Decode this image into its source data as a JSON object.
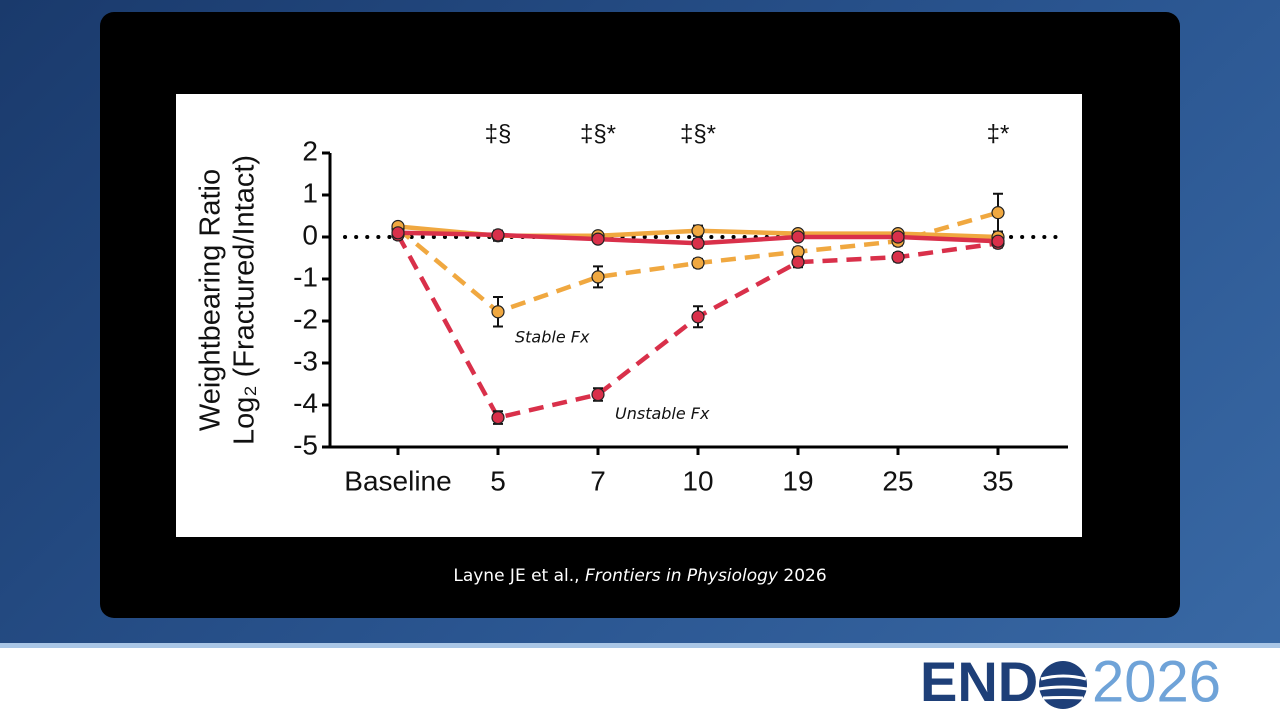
{
  "chart_data": {
    "type": "line",
    "y_label": [
      "Weightbearing Ratio",
      "Log₂ (Fractured/Intact)"
    ],
    "categories": [
      "Baseline",
      "5",
      "7",
      "10",
      "19",
      "25",
      "35"
    ],
    "ylim": [
      -5,
      2
    ],
    "yticks": [
      -5,
      -4,
      -3,
      -2,
      -1,
      0,
      1,
      2
    ],
    "hline": 0,
    "annotations": [
      {
        "text": "‡§",
        "x": "5"
      },
      {
        "text": "‡§*",
        "x": "7"
      },
      {
        "text": "‡§*",
        "x": "10"
      },
      {
        "text": "‡*",
        "x": "35"
      }
    ],
    "series": [
      {
        "name": "Stable Fx",
        "color": "#f0a840",
        "dashed": true,
        "values": [
          0.2,
          -1.78,
          -0.95,
          -0.62,
          -0.35,
          -0.1,
          0.58
        ],
        "errors": [
          0.1,
          0.35,
          0.25,
          0.1,
          0.1,
          0.1,
          0.45
        ]
      },
      {
        "name": "Unstable Fx",
        "color": "#d9304a",
        "dashed": true,
        "values": [
          0.05,
          -4.3,
          -3.75,
          -1.9,
          -0.6,
          -0.48,
          -0.15
        ],
        "errors": [
          0.1,
          0.15,
          0.15,
          0.25,
          0.12,
          0.1,
          0.1
        ]
      },
      {
        "color": "#f0a840",
        "dashed": false,
        "values": [
          0.25,
          0.03,
          0.03,
          0.15,
          0.08,
          0.08,
          0.0
        ],
        "errors": [
          0.08,
          0.12,
          0.06,
          0.12,
          0.08,
          0.08,
          0.08
        ]
      },
      {
        "color": "#d9304a",
        "dashed": false,
        "values": [
          0.1,
          0.05,
          -0.05,
          -0.15,
          0.0,
          0.0,
          -0.1
        ],
        "errors": [
          0.08,
          0.1,
          0.06,
          0.1,
          0.08,
          0.08,
          0.08
        ]
      }
    ]
  },
  "citation": {
    "authors": "Layne JE et al.,",
    "journal": "Frontiers in Physiology",
    "year": "2026"
  },
  "logo": {
    "left": "END",
    "right": "2026"
  }
}
